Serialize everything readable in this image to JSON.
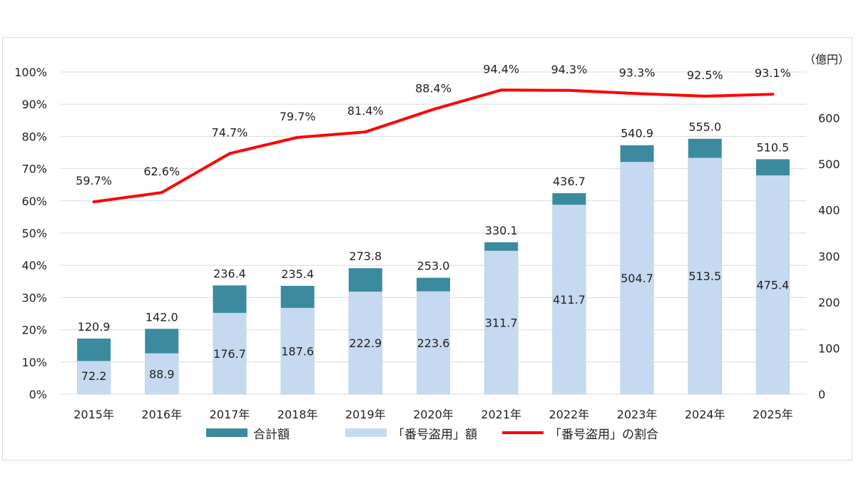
{
  "chart_data": {
    "type": "bar",
    "title": "",
    "categories": [
      "2015年",
      "2016年",
      "2017年",
      "2018年",
      "2019年",
      "2020年",
      "2021年",
      "2022年",
      "2023年",
      "2024年",
      "2025年"
    ],
    "series": [
      {
        "name": "合計額",
        "kind": "bar",
        "axis": "right",
        "color": "#3b8a9e",
        "values": [
          120.9,
          142.0,
          236.4,
          235.4,
          273.8,
          253.0,
          330.1,
          436.7,
          540.9,
          555.0,
          510.5
        ],
        "labels": [
          "120.9",
          "142.0",
          "236.4",
          "235.4",
          "273.8",
          "253.0",
          "330.1",
          "436.7",
          "540.9",
          "555.0",
          "510.5"
        ]
      },
      {
        "name": "「番号盗用」額",
        "kind": "bar",
        "axis": "right",
        "color": "#c5d9f0",
        "values": [
          72.2,
          88.9,
          176.7,
          187.6,
          222.9,
          223.6,
          311.7,
          411.7,
          504.7,
          513.5,
          475.4
        ],
        "labels": [
          "72.2",
          "88.9",
          "176.7",
          "187.6",
          "222.9",
          "223.6",
          "311.7",
          "411.7",
          "504.7",
          "513.5",
          "475.4"
        ]
      },
      {
        "name": "「番号盗用」の割合",
        "kind": "line",
        "axis": "left",
        "color": "#ff0000",
        "values": [
          59.7,
          62.6,
          74.7,
          79.7,
          81.4,
          88.4,
          94.4,
          94.3,
          93.3,
          92.5,
          93.1
        ],
        "labels": [
          "59.7%",
          "62.6%",
          "74.7%",
          "79.7%",
          "81.4%",
          "88.4%",
          "94.4%",
          "94.3%",
          "93.3%",
          "92.5%",
          "93.1%"
        ]
      }
    ],
    "left_axis": {
      "ylim": [
        0,
        100
      ],
      "ticks": [
        "0%",
        "10%",
        "20%",
        "30%",
        "40%",
        "50%",
        "60%",
        "70%",
        "80%",
        "90%",
        "100%"
      ]
    },
    "right_axis": {
      "ylim": [
        0,
        700
      ],
      "unit": "（億円）",
      "ticks": [
        "0",
        "100",
        "200",
        "300",
        "400",
        "500",
        "600"
      ]
    },
    "grid": true,
    "legend_position": "bottom"
  }
}
